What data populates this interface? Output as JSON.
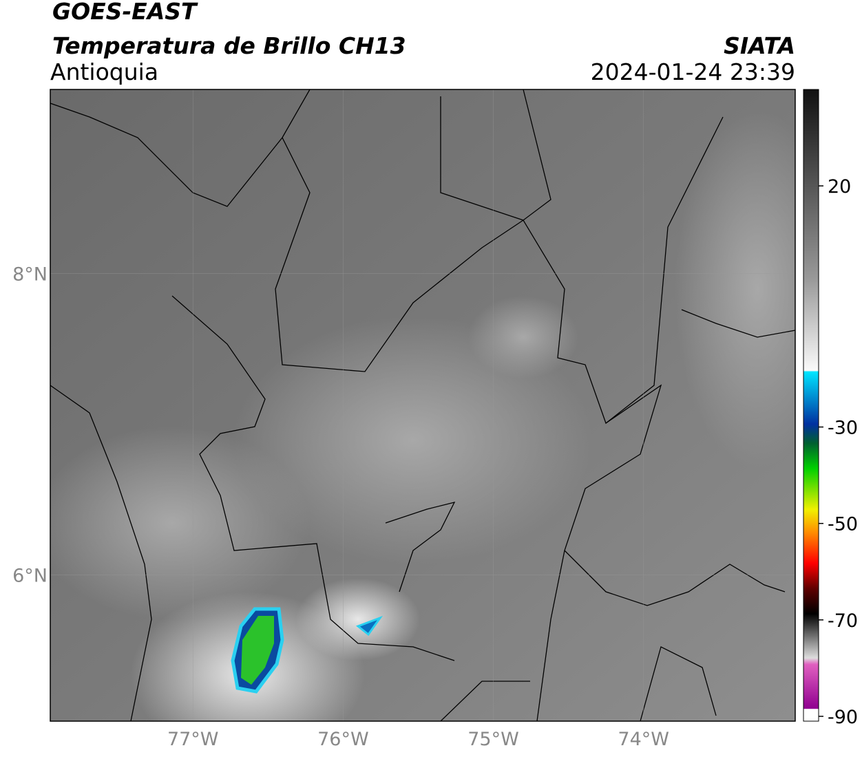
{
  "header": {
    "title": "GOES-EAST",
    "subtitle": "Temperatura de Brillo CH13",
    "region": "Antioquia",
    "source": "SIATA",
    "datetime": "2024-01-24 23:39"
  },
  "map": {
    "xlim": [
      -77.95,
      -72.99
    ],
    "ylim": [
      5.03,
      9.22
    ],
    "lat_ticks": [
      {
        "value": 8,
        "label": "8°N"
      },
      {
        "value": 6,
        "label": "6°N"
      }
    ],
    "lon_ticks": [
      {
        "value": -77,
        "label": "77°W"
      },
      {
        "value": -76,
        "label": "76°W"
      },
      {
        "value": -75,
        "label": "75°W"
      },
      {
        "value": -74,
        "label": "74°W"
      }
    ],
    "colorbar": {
      "lim": [
        40,
        -91
      ],
      "ticks": [
        20,
        -30,
        -50,
        -70,
        -90
      ]
    }
  }
}
